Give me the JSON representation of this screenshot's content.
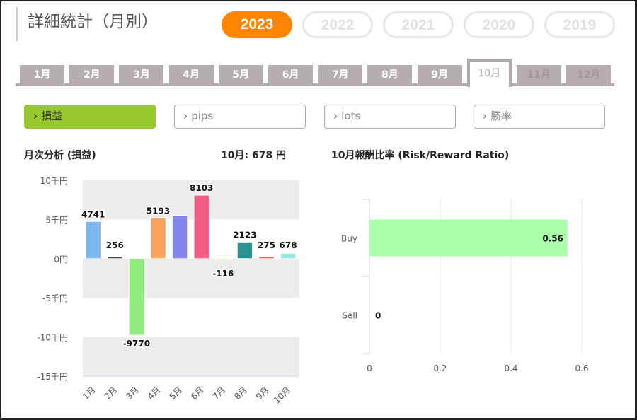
{
  "title": "詳細統計（月別）",
  "years": [
    "2023",
    "2022",
    "2021",
    "2020",
    "2019"
  ],
  "months": [
    "1月",
    "2月",
    "3月",
    "4月",
    "5月",
    "6月",
    "7月",
    "8月",
    "9月",
    "10月",
    "11月",
    "12月"
  ],
  "metrics": [
    "損益",
    "pips",
    "lots",
    "勝率"
  ],
  "chevron": "›",
  "left_title": "月次分析 (損益)",
  "left_summary": "10月:  678 円",
  "right_title": "10月報酬比率 (Risk/Reward Ratio)",
  "chart_data": [
    {
      "type": "bar",
      "title": "月次分析 (損益)",
      "categories": [
        "1月",
        "2月",
        "3月",
        "4月",
        "5月",
        "6月",
        "7月",
        "8月",
        "9月",
        "10月"
      ],
      "values": [
        4741,
        256,
        -9770,
        5193,
        5530,
        8103,
        -116,
        2123,
        275,
        678
      ],
      "labels": [
        "4741",
        "256",
        "-9770",
        "5193",
        "",
        "8103",
        "-116",
        "2123",
        "275",
        "678"
      ],
      "colors": [
        "#7cb5ec",
        "#434348",
        "#90ed7d",
        "#f7a35c",
        "#8085e9",
        "#f15c80",
        "#e4d354",
        "#2b908f",
        "#f45b5b",
        "#91e8e1"
      ],
      "yticks": [
        10000,
        5000,
        0,
        -5000,
        -10000,
        -15000
      ],
      "ytick_labels": [
        "10千円",
        "5千円",
        "0円",
        "-5千円",
        "-10千円",
        "-15千円"
      ],
      "ylim": [
        -15000,
        10000
      ]
    },
    {
      "type": "bar",
      "orientation": "horizontal",
      "title": "10月報酬比率 (Risk/Reward Ratio)",
      "categories": [
        "Buy",
        "Sell"
      ],
      "values": [
        0.56,
        0
      ],
      "labels": [
        "0.56",
        "0"
      ],
      "color": "#aaffaa",
      "xticks": [
        0,
        0.2,
        0.4,
        0.6
      ],
      "xtick_labels": [
        "0",
        "0.2",
        "0.4",
        "0.6"
      ],
      "xlim": [
        0,
        0.6
      ]
    }
  ]
}
